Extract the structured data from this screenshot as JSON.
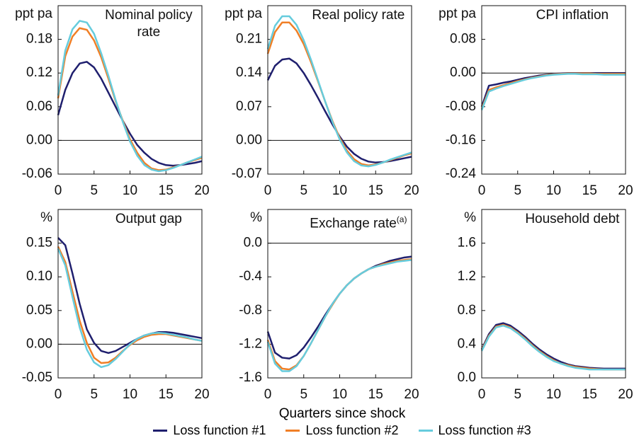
{
  "xlabel": "Quarters since shock",
  "chart_data": [
    {
      "type": "line",
      "title": "Nominal policy rate",
      "unit": "ppt pa",
      "x": [
        0,
        1,
        2,
        3,
        4,
        5,
        6,
        7,
        8,
        9,
        10,
        11,
        12,
        13,
        14,
        15,
        16,
        17,
        18,
        19,
        20
      ],
      "xlim": [
        0,
        20
      ],
      "xticks": [
        0,
        5,
        10,
        15,
        20
      ],
      "ylim": [
        -0.06,
        0.24
      ],
      "yticks": [
        -0.06,
        {
          "value": 0,
          "label": "0.00"
        },
        0.06,
        0.12,
        0.18
      ],
      "series": [
        {
          "name": "Loss function #1",
          "color": "#1f1f6e",
          "values": [
            0.045,
            0.09,
            0.12,
            0.137,
            0.14,
            0.13,
            0.11,
            0.085,
            0.06,
            0.035,
            0.012,
            -0.008,
            -0.022,
            -0.033,
            -0.04,
            -0.044,
            -0.045,
            -0.044,
            -0.042,
            -0.04,
            -0.037
          ]
        },
        {
          "name": "Loss function #2",
          "color": "#f07f26",
          "values": [
            0.075,
            0.15,
            0.185,
            0.2,
            0.197,
            0.178,
            0.148,
            0.11,
            0.07,
            0.035,
            0.002,
            -0.022,
            -0.04,
            -0.05,
            -0.053,
            -0.052,
            -0.048,
            -0.044,
            -0.039,
            -0.035,
            -0.031
          ]
        },
        {
          "name": "Loss function #3",
          "color": "#66ccdd",
          "values": [
            0.08,
            0.16,
            0.198,
            0.213,
            0.21,
            0.19,
            0.155,
            0.115,
            0.072,
            0.033,
            -0.002,
            -0.027,
            -0.044,
            -0.052,
            -0.055,
            -0.053,
            -0.049,
            -0.044,
            -0.039,
            -0.034,
            -0.029
          ]
        }
      ]
    },
    {
      "type": "line",
      "title": "Real policy rate",
      "unit": "ppt pa",
      "x": [
        0,
        1,
        2,
        3,
        4,
        5,
        6,
        7,
        8,
        9,
        10,
        11,
        12,
        13,
        14,
        15,
        16,
        17,
        18,
        19,
        20
      ],
      "xlim": [
        0,
        20
      ],
      "xticks": [
        0,
        5,
        10,
        15,
        20
      ],
      "ylim": [
        -0.07,
        0.28
      ],
      "yticks": [
        -0.07,
        {
          "value": 0,
          "label": "0.00"
        },
        0.07,
        0.14,
        0.21
      ],
      "series": [
        {
          "name": "Loss function #1",
          "color": "#1f1f6e",
          "values": [
            0.125,
            0.155,
            0.168,
            0.17,
            0.16,
            0.14,
            0.115,
            0.088,
            0.06,
            0.033,
            0.008,
            -0.013,
            -0.028,
            -0.038,
            -0.044,
            -0.046,
            -0.045,
            -0.043,
            -0.04,
            -0.037,
            -0.034
          ]
        },
        {
          "name": "Loss function #2",
          "color": "#f07f26",
          "values": [
            0.18,
            0.225,
            0.245,
            0.245,
            0.228,
            0.2,
            0.163,
            0.122,
            0.08,
            0.04,
            0.005,
            -0.021,
            -0.039,
            -0.049,
            -0.052,
            -0.05,
            -0.046,
            -0.041,
            -0.036,
            -0.031,
            -0.027
          ]
        },
        {
          "name": "Loss function #3",
          "color": "#66ccdd",
          "values": [
            0.19,
            0.238,
            0.258,
            0.258,
            0.24,
            0.208,
            0.168,
            0.124,
            0.08,
            0.038,
            0.002,
            -0.025,
            -0.043,
            -0.052,
            -0.054,
            -0.051,
            -0.046,
            -0.04,
            -0.035,
            -0.03,
            -0.025
          ]
        }
      ]
    },
    {
      "type": "line",
      "title": "CPI inflation",
      "unit": "ppt pa",
      "x": [
        0,
        1,
        2,
        3,
        4,
        5,
        6,
        7,
        8,
        9,
        10,
        11,
        12,
        13,
        14,
        15,
        16,
        17,
        18,
        19,
        20
      ],
      "xlim": [
        0,
        20
      ],
      "xticks": [
        0,
        5,
        10,
        15,
        20
      ],
      "ylim": [
        -0.24,
        0.16
      ],
      "yticks": [
        -0.24,
        -0.16,
        -0.08,
        {
          "value": 0,
          "label": "0.00"
        },
        0.08
      ],
      "series": [
        {
          "name": "Loss function #1",
          "color": "#1f1f6e",
          "values": [
            -0.08,
            -0.03,
            -0.027,
            -0.023,
            -0.02,
            -0.016,
            -0.012,
            -0.009,
            -0.006,
            -0.004,
            -0.002,
            -0.001,
            0,
            0,
            0,
            0,
            0,
            0,
            0,
            0,
            0
          ]
        },
        {
          "name": "Loss function #2",
          "color": "#f07f26",
          "values": [
            -0.085,
            -0.04,
            -0.034,
            -0.029,
            -0.024,
            -0.019,
            -0.015,
            -0.011,
            -0.008,
            -0.005,
            -0.003,
            -0.002,
            -0.001,
            -0.001,
            -0.001,
            -0.001,
            -0.002,
            -0.002,
            -0.002,
            -0.002,
            -0.002
          ]
        },
        {
          "name": "Loss function #3",
          "color": "#66ccdd",
          "values": [
            -0.088,
            -0.044,
            -0.037,
            -0.031,
            -0.026,
            -0.021,
            -0.016,
            -0.012,
            -0.009,
            -0.006,
            -0.004,
            -0.003,
            -0.002,
            -0.002,
            -0.003,
            -0.003,
            -0.003,
            -0.004,
            -0.004,
            -0.004,
            -0.004
          ]
        }
      ]
    },
    {
      "type": "line",
      "title": "Output gap",
      "unit": "%",
      "x": [
        0,
        1,
        2,
        3,
        4,
        5,
        6,
        7,
        8,
        9,
        10,
        11,
        12,
        13,
        14,
        15,
        16,
        17,
        18,
        19,
        20
      ],
      "xlim": [
        0,
        20
      ],
      "xticks": [
        0,
        5,
        10,
        15,
        20
      ],
      "ylim": [
        -0.05,
        0.2
      ],
      "yticks": [
        -0.05,
        {
          "value": 0,
          "label": "0.00"
        },
        0.05,
        {
          "value": 0.1,
          "label": "0.10"
        },
        0.15
      ],
      "series": [
        {
          "name": "Loss function #1",
          "color": "#1f1f6e",
          "values": [
            0.158,
            0.147,
            0.105,
            0.06,
            0.022,
            0.002,
            -0.01,
            -0.013,
            -0.01,
            -0.004,
            0.002,
            0.008,
            0.013,
            0.016,
            0.018,
            0.018,
            0.017,
            0.015,
            0.013,
            0.011,
            0.009
          ]
        },
        {
          "name": "Loss function #2",
          "color": "#f07f26",
          "values": [
            0.145,
            0.122,
            0.078,
            0.035,
            0.002,
            -0.02,
            -0.028,
            -0.027,
            -0.02,
            -0.01,
            -0.001,
            0.006,
            0.011,
            0.014,
            0.015,
            0.015,
            0.013,
            0.011,
            0.009,
            0.007,
            0.005
          ]
        },
        {
          "name": "Loss function #3",
          "color": "#66ccdd",
          "values": [
            0.142,
            0.117,
            0.07,
            0.025,
            -0.008,
            -0.027,
            -0.034,
            -0.031,
            -0.022,
            -0.011,
            0,
            0.008,
            0.013,
            0.016,
            0.017,
            0.016,
            0.014,
            0.012,
            0.01,
            0.007,
            0.005
          ]
        }
      ]
    },
    {
      "type": "line",
      "title": "Exchange rate",
      "title_note": "(a)",
      "unit": "%",
      "x": [
        0,
        1,
        2,
        3,
        4,
        5,
        6,
        7,
        8,
        9,
        10,
        11,
        12,
        13,
        14,
        15,
        16,
        17,
        18,
        19,
        20
      ],
      "xlim": [
        0,
        20
      ],
      "xticks": [
        0,
        5,
        10,
        15,
        20
      ],
      "ylim": [
        -1.6,
        0.4
      ],
      "yticks": [
        -1.6,
        -1.2,
        -0.8,
        -0.4,
        {
          "value": 0,
          "label": "0.0"
        }
      ],
      "series": [
        {
          "name": "Loss function #1",
          "color": "#1f1f6e",
          "values": [
            -1.05,
            -1.3,
            -1.36,
            -1.37,
            -1.33,
            -1.24,
            -1.12,
            -0.99,
            -0.85,
            -0.72,
            -0.6,
            -0.5,
            -0.42,
            -0.36,
            -0.31,
            -0.27,
            -0.24,
            -0.21,
            -0.19,
            -0.17,
            -0.16
          ]
        },
        {
          "name": "Loss function #2",
          "color": "#f07f26",
          "values": [
            -1.15,
            -1.4,
            -1.49,
            -1.5,
            -1.45,
            -1.34,
            -1.19,
            -1.03,
            -0.87,
            -0.73,
            -0.6,
            -0.5,
            -0.42,
            -0.36,
            -0.31,
            -0.28,
            -0.25,
            -0.23,
            -0.21,
            -0.2,
            -0.19
          ]
        },
        {
          "name": "Loss function #3",
          "color": "#66ccdd",
          "values": [
            -1.17,
            -1.43,
            -1.52,
            -1.52,
            -1.46,
            -1.34,
            -1.19,
            -1.03,
            -0.87,
            -0.72,
            -0.6,
            -0.5,
            -0.42,
            -0.36,
            -0.31,
            -0.28,
            -0.26,
            -0.24,
            -0.22,
            -0.21,
            -0.2
          ]
        }
      ]
    },
    {
      "type": "line",
      "title": "Household debt",
      "unit": "%",
      "x": [
        0,
        1,
        2,
        3,
        4,
        5,
        6,
        7,
        8,
        9,
        10,
        11,
        12,
        13,
        14,
        15,
        16,
        17,
        18,
        19,
        20
      ],
      "xlim": [
        0,
        20
      ],
      "xticks": [
        0,
        5,
        10,
        15,
        20
      ],
      "ylim": [
        0,
        2.0
      ],
      "yticks": [
        {
          "value": 0,
          "label": "0.0"
        },
        0.4,
        0.8,
        1.2,
        1.6
      ],
      "series": [
        {
          "name": "Loss function #1",
          "color": "#1f1f6e",
          "values": [
            0.34,
            0.52,
            0.63,
            0.65,
            0.62,
            0.56,
            0.49,
            0.41,
            0.34,
            0.28,
            0.23,
            0.19,
            0.16,
            0.14,
            0.13,
            0.12,
            0.115,
            0.11,
            0.11,
            0.11,
            0.11
          ]
        },
        {
          "name": "Loss function #2",
          "color": "#f07f26",
          "values": [
            0.33,
            0.5,
            0.61,
            0.63,
            0.6,
            0.54,
            0.47,
            0.39,
            0.32,
            0.26,
            0.21,
            0.17,
            0.15,
            0.13,
            0.12,
            0.11,
            0.105,
            0.1,
            0.1,
            0.1,
            0.1
          ]
        },
        {
          "name": "Loss function #3",
          "color": "#66ccdd",
          "values": [
            0.32,
            0.49,
            0.6,
            0.62,
            0.59,
            0.53,
            0.46,
            0.38,
            0.31,
            0.25,
            0.2,
            0.17,
            0.14,
            0.12,
            0.11,
            0.1,
            0.1,
            0.1,
            0.1,
            0.1,
            0.1
          ]
        }
      ]
    }
  ]
}
